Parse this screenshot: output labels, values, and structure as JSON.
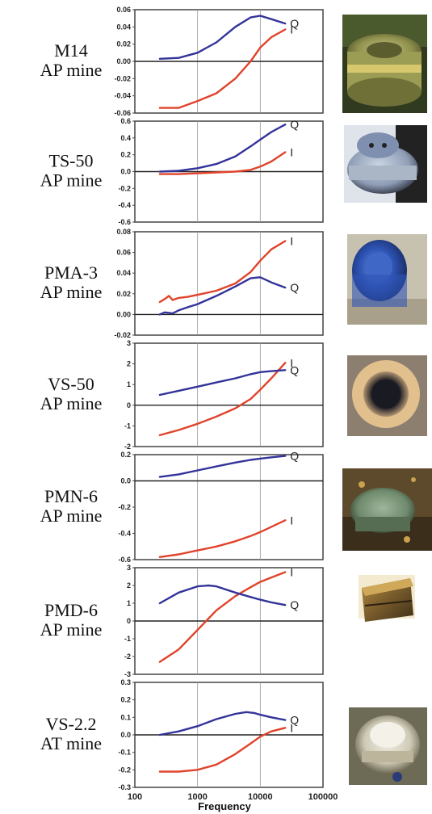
{
  "colors": {
    "I": "#e0432b",
    "Q": "#33339a"
  },
  "x_axis": {
    "label": "Frequency",
    "scale": "log",
    "ticks": [
      100,
      1000,
      10000,
      100000
    ],
    "tick_labels": [
      "100",
      "1000",
      "10000",
      "100000"
    ]
  },
  "panels": [
    {
      "label_line1": "M14",
      "label_line2": "AP mine",
      "photo_icon": "m14-mine-photo",
      "chart_data": {
        "type": "line",
        "x_scale": "log",
        "xlim": [
          100,
          100000
        ],
        "ylim": [
          -0.06,
          0.06
        ],
        "yticks": [
          -0.06,
          -0.04,
          -0.02,
          0.0,
          0.02,
          0.04,
          0.06
        ],
        "ytick_labels": [
          "-0.06",
          "-0.04",
          "-0.02",
          "0.00",
          "0.02",
          "0.04",
          "0.06"
        ],
        "series": [
          {
            "name": "Q",
            "x": [
              250,
              500,
              1000,
              2000,
              4000,
              7000,
              10000,
              15000,
              25000
            ],
            "y": [
              0.003,
              0.004,
              0.01,
              0.022,
              0.04,
              0.051,
              0.053,
              0.049,
              0.044
            ]
          },
          {
            "name": "I",
            "x": [
              250,
              500,
              1000,
              2000,
              4000,
              7000,
              10000,
              15000,
              25000
            ],
            "y": [
              -0.054,
              -0.054,
              -0.046,
              -0.037,
              -0.02,
              0.0,
              0.016,
              0.028,
              0.037
            ]
          }
        ]
      }
    },
    {
      "label_line1": "TS-50",
      "label_line2": "AP mine",
      "photo_icon": "ts50-mine-photo",
      "chart_data": {
        "type": "line",
        "x_scale": "log",
        "xlim": [
          100,
          100000
        ],
        "ylim": [
          -0.6,
          0.6
        ],
        "yticks": [
          -0.6,
          -0.4,
          -0.2,
          0.0,
          0.2,
          0.4,
          0.6
        ],
        "ytick_labels": [
          "-0.6",
          "-0.4",
          "-0.2",
          "0.0",
          "0.2",
          "0.4",
          "0.6"
        ],
        "series": [
          {
            "name": "Q",
            "x": [
              250,
              500,
              1000,
              2000,
              4000,
              7000,
              10000,
              15000,
              25000
            ],
            "y": [
              0.0,
              0.01,
              0.04,
              0.09,
              0.18,
              0.3,
              0.38,
              0.47,
              0.56
            ]
          },
          {
            "name": "I",
            "x": [
              250,
              500,
              1000,
              2000,
              4000,
              7000,
              10000,
              15000,
              25000
            ],
            "y": [
              -0.03,
              -0.03,
              -0.02,
              -0.01,
              0.0,
              0.02,
              0.06,
              0.12,
              0.23
            ]
          }
        ]
      }
    },
    {
      "label_line1": "PMA-3",
      "label_line2": "AP mine",
      "photo_icon": "pma3-mine-photo",
      "chart_data": {
        "type": "line",
        "x_scale": "log",
        "xlim": [
          100,
          100000
        ],
        "ylim": [
          -0.02,
          0.08
        ],
        "yticks": [
          -0.02,
          0.0,
          0.02,
          0.04,
          0.06,
          0.08
        ],
        "ytick_labels": [
          "-0.02",
          "0.00",
          "0.02",
          "0.04",
          "0.06",
          "0.08"
        ],
        "series": [
          {
            "name": "I",
            "x": [
              250,
              300,
              350,
              400,
              500,
              700,
              1000,
              2000,
              4000,
              7000,
              10000,
              15000,
              25000
            ],
            "y": [
              0.012,
              0.015,
              0.018,
              0.014,
              0.016,
              0.017,
              0.019,
              0.023,
              0.03,
              0.041,
              0.052,
              0.063,
              0.071
            ]
          },
          {
            "name": "Q",
            "x": [
              250,
              300,
              400,
              500,
              700,
              1000,
              2000,
              4000,
              7000,
              10000,
              15000,
              25000
            ],
            "y": [
              0.0,
              0.002,
              0.001,
              0.004,
              0.007,
              0.01,
              0.018,
              0.027,
              0.035,
              0.036,
              0.031,
              0.026
            ]
          }
        ]
      }
    },
    {
      "label_line1": "VS-50",
      "label_line2": "AP mine",
      "photo_icon": "vs50-mine-photo",
      "chart_data": {
        "type": "line",
        "x_scale": "log",
        "xlim": [
          100,
          100000
        ],
        "ylim": [
          -2,
          3
        ],
        "yticks": [
          -2,
          -1,
          0,
          1,
          2,
          3
        ],
        "ytick_labels": [
          "-2",
          "-1",
          "0",
          "1",
          "2",
          "3"
        ],
        "series": [
          {
            "name": "I",
            "x": [
              250,
              500,
              1000,
              2000,
              4000,
              7000,
              10000,
              15000,
              25000
            ],
            "y": [
              -1.45,
              -1.2,
              -0.9,
              -0.55,
              -0.15,
              0.3,
              0.75,
              1.3,
              2.05
            ]
          },
          {
            "name": "Q",
            "x": [
              250,
              500,
              1000,
              2000,
              4000,
              7000,
              10000,
              15000,
              25000
            ],
            "y": [
              0.5,
              0.7,
              0.9,
              1.1,
              1.3,
              1.5,
              1.6,
              1.65,
              1.7
            ]
          }
        ]
      }
    },
    {
      "label_line1": "PMN-6",
      "label_line2": "AP mine",
      "photo_icon": "pmn6-mine-photo",
      "chart_data": {
        "type": "line",
        "x_scale": "log",
        "xlim": [
          100,
          100000
        ],
        "ylim": [
          -0.6,
          0.2
        ],
        "yticks": [
          -0.6,
          -0.4,
          -0.2,
          0.0,
          0.2
        ],
        "ytick_labels": [
          "-0.6",
          "-0.4",
          "-0.2",
          "0.0",
          "0.2"
        ],
        "series": [
          {
            "name": "Q",
            "x": [
              250,
              500,
              1000,
              2000,
              4000,
              7000,
              10000,
              15000,
              25000
            ],
            "y": [
              0.03,
              0.05,
              0.08,
              0.11,
              0.14,
              0.16,
              0.17,
              0.18,
              0.19
            ]
          },
          {
            "name": "I",
            "x": [
              250,
              500,
              1000,
              2000,
              4000,
              7000,
              10000,
              15000,
              25000
            ],
            "y": [
              -0.58,
              -0.56,
              -0.53,
              -0.5,
              -0.46,
              -0.42,
              -0.39,
              -0.35,
              -0.3
            ]
          }
        ]
      }
    },
    {
      "label_line1": "PMD-6",
      "label_line2": "AP mine",
      "photo_icon": "pmd6-mine-photo",
      "chart_data": {
        "type": "line",
        "x_scale": "log",
        "xlim": [
          100,
          100000
        ],
        "ylim": [
          -3,
          3
        ],
        "yticks": [
          -3,
          -2,
          -1,
          0,
          1,
          2,
          3
        ],
        "ytick_labels": [
          "-3",
          "-2",
          "-1",
          "0",
          "1",
          "2",
          "3"
        ],
        "series": [
          {
            "name": "I",
            "x": [
              250,
              500,
              1000,
              2000,
              4000,
              7000,
              10000,
              15000,
              25000
            ],
            "y": [
              -2.3,
              -1.6,
              -0.5,
              0.6,
              1.4,
              1.9,
              2.2,
              2.45,
              2.75
            ]
          },
          {
            "name": "Q",
            "x": [
              250,
              500,
              1000,
              1500,
              2000,
              4000,
              7000,
              10000,
              15000,
              25000
            ],
            "y": [
              1.0,
              1.6,
              1.95,
              2.0,
              1.95,
              1.6,
              1.35,
              1.2,
              1.05,
              0.9
            ]
          }
        ]
      }
    },
    {
      "label_line1": "VS-2.2",
      "label_line2": "AT mine",
      "photo_icon": "vs22-mine-photo",
      "chart_data": {
        "type": "line",
        "x_scale": "log",
        "xlim": [
          100,
          100000
        ],
        "ylim": [
          -0.3,
          0.3
        ],
        "yticks": [
          -0.3,
          -0.2,
          -0.1,
          0.0,
          0.1,
          0.2,
          0.3
        ],
        "ytick_labels": [
          "-0.3",
          "-0.2",
          "-0.1",
          "0.0",
          "0.1",
          "0.2",
          "0.3"
        ],
        "series": [
          {
            "name": "Q",
            "x": [
              250,
              500,
              1000,
              2000,
              4000,
              6000,
              8000,
              10000,
              15000,
              25000
            ],
            "y": [
              0.0,
              0.02,
              0.05,
              0.09,
              0.12,
              0.13,
              0.125,
              0.115,
              0.1,
              0.085
            ]
          },
          {
            "name": "I",
            "x": [
              250,
              500,
              1000,
              2000,
              4000,
              7000,
              10000,
              15000,
              25000
            ],
            "y": [
              -0.21,
              -0.21,
              -0.2,
              -0.17,
              -0.11,
              -0.05,
              -0.01,
              0.02,
              0.04
            ]
          }
        ]
      }
    }
  ]
}
